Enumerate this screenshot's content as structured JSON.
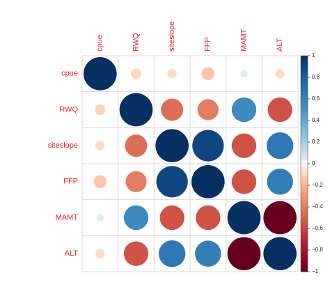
{
  "chart_data": {
    "type": "heatmap",
    "style": "correlation-circle-matrix",
    "variables": [
      "cpue",
      "RWQ",
      "siteslope",
      "FFP",
      "MAMT",
      "ALT"
    ],
    "matrix": [
      [
        1.0,
        -0.1,
        -0.08,
        -0.15,
        0.05,
        -0.08
      ],
      [
        -0.1,
        1.0,
        -0.45,
        -0.4,
        0.55,
        -0.55
      ],
      [
        -0.08,
        -0.45,
        1.0,
        0.9,
        -0.55,
        0.65
      ],
      [
        -0.15,
        -0.4,
        0.9,
        1.0,
        -0.55,
        0.62
      ],
      [
        0.05,
        0.55,
        -0.55,
        -0.55,
        1.0,
        -1.0
      ],
      [
        -0.08,
        -0.55,
        0.65,
        0.62,
        -1.0,
        1.0
      ]
    ],
    "colorbar": {
      "range": [
        -1,
        1
      ],
      "ticks": [
        "1",
        "0.8",
        "0.6",
        "0.4",
        "0.2",
        "0",
        "−0.2",
        "−0.4",
        "−0.6",
        "−0.8",
        "−1"
      ],
      "low_color": "#67001F",
      "mid_color": "#F7F7F7",
      "high_color": "#053061"
    },
    "label_color": "#E8202A",
    "grid": true
  }
}
